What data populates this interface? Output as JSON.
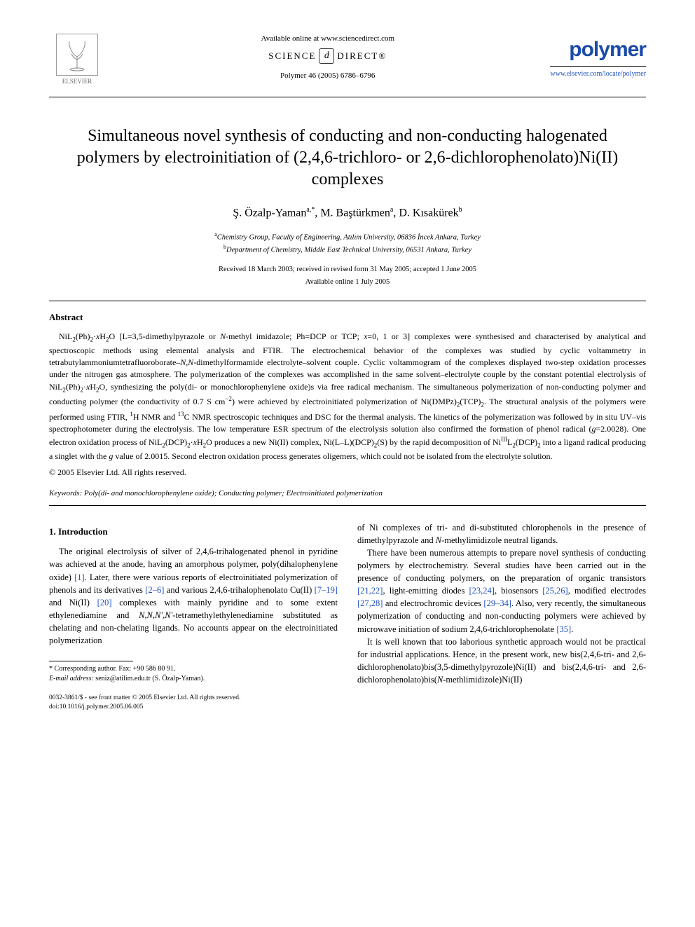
{
  "header": {
    "available_online": "Available online at www.sciencedirect.com",
    "science_direct_left": "SCIENCE",
    "science_direct_right": "DIRECT®",
    "journal_ref": "Polymer 46 (2005) 6786–6796",
    "elsevier_label": "ELSEVIER",
    "journal_name": "polymer",
    "journal_link": "www.elsevier.com/locate/polymer"
  },
  "title": "Simultaneous novel synthesis of conducting and non-conducting halogenated polymers by electroinitiation of (2,4,6-trichloro- or 2,6-dichlorophenolato)Ni(II) complexes",
  "authors_html": "Ş. Özalp-Yaman<sup>a,*</sup>, M. Baştürkmen<sup>a</sup>, D. Kısakürek<sup>b</sup>",
  "affiliations": {
    "a": "Chemistry Group, Faculty of Engineering, Atılım University, 06836 İncek Ankara, Turkey",
    "b": "Department of Chemistry, Middle East Technical University, 06531 Ankara, Turkey"
  },
  "dates": {
    "received": "Received 18 March 2003; received in revised form 31 May 2005; accepted 1 June 2005",
    "online": "Available online 1 July 2005"
  },
  "abstract": {
    "heading": "Abstract",
    "text_html": "NiL<sub>2</sub>(Ph)<sub>2</sub>·<i>x</i>H<sub>2</sub>O [L=3,5-dimethylpyrazole or <i>N</i>-methyl imidazole; Ph=DCP or TCP; <i>x</i>=0, 1 or 3] complexes were synthesised and characterised by analytical and spectroscopic methods using elemental analysis and FTIR. The electrochemical behavior of the complexes was studied by cyclic voltammetry in tetrabutylammoniumtetrafluoroborate–<i>N</i>,<i>N</i>-dimethylformamide electrolyte–solvent couple. Cyclic voltammogram of the complexes displayed two-step oxidation processes under the nitrogen gas atmosphere. The polymerization of the complexes was accomplished in the same solvent–electrolyte couple by the constant potential electrolysis of NiL<sub>2</sub>(Ph)<sub>2</sub>·<i>x</i>H<sub>2</sub>O, synthesizing the poly(di- or monochlorophenylene oxide)s via free radical mechanism. The simultaneous polymerization of non-conducting polymer and conducting polymer (the conductivity of 0.7 S cm<sup>−2</sup>) were achieved by electroinitiated polymerization of Ni(DMPz)<sub>2</sub>(TCP)<sub>2</sub>. The structural analysis of the polymers were performed using FTIR, <sup>1</sup>H NMR and <sup>13</sup>C NMR spectroscopic techniques and DSC for the thermal analysis. The kinetics of the polymerization was followed by in situ UV–vis spectrophotometer during the electrolysis. The low temperature ESR spectrum of the electrolysis solution also confirmed the formation of phenol radical (<i>g</i>=2.0028). One electron oxidation process of NiL<sub>2</sub>(DCP)<sub>2</sub>·<i>x</i>H<sub>2</sub>O produces a new Ni(II) complex, Ni(L–L)(DCP)<sub>2</sub>(S) by the rapid decomposition of Ni<sup>III</sup>L<sub>2</sub>(DCP)<sub>2</sub> into a ligand radical producing a singlet with the <i>g</i> value of 2.0015. Second electron oxidation process generates oligemers, which could not be isolated from the electrolyte solution.",
    "copyright": "© 2005 Elsevier Ltd. All rights reserved."
  },
  "keywords": {
    "label": "Keywords:",
    "text": "Poly(di- and monochlorophenylene oxide); Conducting polymer; Electroinitiated polymerization"
  },
  "section1": {
    "heading": "1. Introduction",
    "left_html": "The original electrolysis of silver of 2,4,6-trihalogenated phenol in pyridine was achieved at the anode, having an amorphous polymer, poly(dihalophenylene oxide) <span class=\"ref-link\">[1]</span>. Later, there were various reports of electroinitiated polymerization of phenols and its derivatives <span class=\"ref-link\">[2–6]</span> and various 2,4,6-trihalophenolato Cu(II) <span class=\"ref-link\">[7–19]</span> and Ni(II) <span class=\"ref-link\">[20]</span> complexes with mainly pyridine and to some extent ethylenediamine and <i>N</i>,<i>N</i>,<i>N′</i>,<i>N′</i>-tetramethylethylenediamine substituted as chelating and non-chelating ligands. No accounts appear on the electroinitiated polymerization",
    "right_p1_html": "of Ni complexes of tri- and di-substituted chlorophenols in the presence of dimethylpyrazole and <i>N</i>-methylimidizole neutral ligands.",
    "right_p2_html": "There have been numerous attempts to prepare novel synthesis of conducting polymers by electrochemistry. Several studies have been carried out in the presence of conducting polymers, on the preparation of organic transistors <span class=\"ref-link\">[21,22]</span>, light-emitting diodes <span class=\"ref-link\">[23,24]</span>, biosensors <span class=\"ref-link\">[25,26]</span>, modified electrodes <span class=\"ref-link\">[27,28]</span> and electrochromic devices <span class=\"ref-link\">[29–34]</span>. Also, very recently, the simultaneous polymerization of conducting and non-conducting polymers were achieved by microwave initiation of sodium 2,4,6-trichlorophenolate <span class=\"ref-link\">[35]</span>.",
    "right_p3_html": "It is well known that too laborious synthetic approach would not be practical for industrial applications. Hence, in the present work, new bis(2,4,6-tri- and 2,6-dichlorophenolato)bis(3,5-dimethylpyrozole)Ni(II) and bis(2,4,6-tri- and 2,6-dichlorophenolato)bis(<i>N</i>-methlimidizole)Ni(II)"
  },
  "footnotes": {
    "corr": "* Corresponding author. Fax: +90 586 80 91.",
    "email_label": "E-mail address:",
    "email": "seniz@atilim.edu.tr (S. Özalp-Yaman)."
  },
  "footer": {
    "line1": "0032-3861/$ - see front matter © 2005 Elsevier Ltd. All rights reserved.",
    "line2": "doi:10.1016/j.polymer.2005.06.005"
  },
  "colors": {
    "link": "#2050c0",
    "journal": "#1a4ba8",
    "text": "#000000",
    "background": "#ffffff"
  }
}
